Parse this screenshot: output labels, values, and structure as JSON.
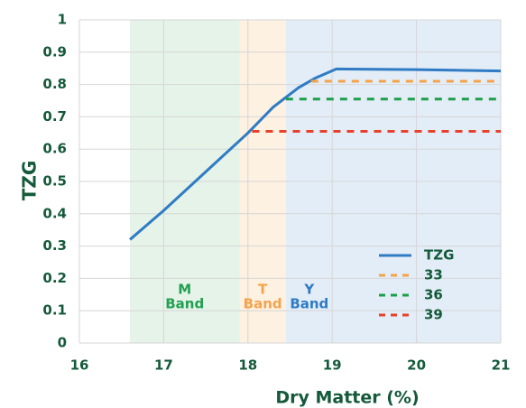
{
  "chart_data": {
    "type": "line",
    "xlabel": "Dry Matter (%)",
    "ylabel": "TZG",
    "xlim": [
      16,
      21
    ],
    "xticks": [
      16,
      17,
      18,
      19,
      20,
      21
    ],
    "ylim": [
      0,
      1
    ],
    "yticks": [
      0,
      0.1,
      0.2,
      0.3,
      0.4,
      0.5,
      0.6,
      0.7,
      0.8,
      0.9,
      1
    ],
    "grid": true,
    "legend": "lower right",
    "bands": [
      {
        "label": [
          "M",
          "Band"
        ],
        "start": 16.6,
        "end": 17.9,
        "fill": "#e5f3e9",
        "color": "#22a050"
      },
      {
        "label": [
          "T",
          "Band"
        ],
        "start": 17.9,
        "end": 18.45,
        "fill": "#fdf1e1",
        "color": "#f5a34a"
      },
      {
        "label": [
          "Y",
          "Band"
        ],
        "start": 18.45,
        "end": 21,
        "fill": "#e3edf7",
        "color": "#2f7bc4"
      }
    ],
    "series": [
      {
        "name": "TZG",
        "color": "#2f7bc4",
        "dash": false,
        "x": [
          16.6,
          17,
          17.5,
          18,
          18.3,
          18.6,
          18.8,
          19.05,
          20,
          21
        ],
        "values": [
          0.32,
          0.41,
          0.53,
          0.65,
          0.73,
          0.79,
          0.82,
          0.848,
          0.846,
          0.842
        ]
      },
      {
        "name": "33",
        "color": "#f5a34a",
        "dash": true,
        "x": [
          18.75,
          21
        ],
        "values": [
          0.81,
          0.81
        ]
      },
      {
        "name": "36",
        "color": "#1e9e4a",
        "dash": true,
        "x": [
          18.45,
          21
        ],
        "values": [
          0.755,
          0.755
        ]
      },
      {
        "name": "39",
        "color": "#e8402a",
        "dash": true,
        "x": [
          18.05,
          21
        ],
        "values": [
          0.655,
          0.655
        ]
      }
    ]
  }
}
